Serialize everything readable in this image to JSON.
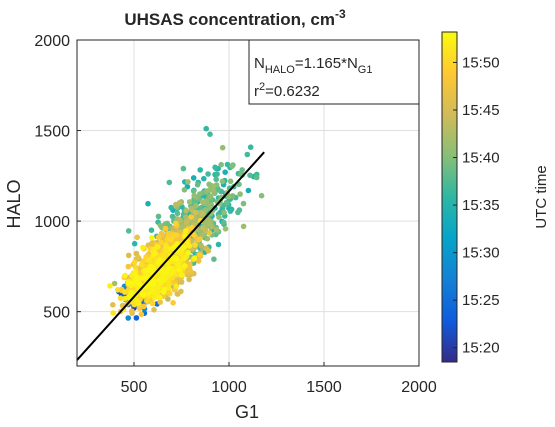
{
  "chart_data": {
    "type": "scatter",
    "title": "UHSAS concentration, cm",
    "title_sup": "-3",
    "xlabel": "G1",
    "ylabel": "HALO",
    "xlim": [
      200,
      2000
    ],
    "ylim": [
      200,
      2000
    ],
    "xticks": [
      500,
      1000,
      1500,
      2000
    ],
    "yticks": [
      500,
      1000,
      1500,
      2000
    ],
    "grid": true,
    "annotation": {
      "line1": {
        "n": "N",
        "sub1": "HALO",
        "mid": "=1.165*N",
        "sub2": "G1"
      },
      "line2": {
        "r": "r",
        "sup": "2",
        "val": "=0.6232"
      }
    },
    "fit": {
      "slope": 1.165,
      "intercept": 0,
      "x_range": [
        200,
        1185
      ]
    },
    "colorbar": {
      "label": "UTC time",
      "ticks": [
        "15:20",
        "15:25",
        "15:30",
        "15:35",
        "15:40",
        "15:45",
        "15:50"
      ],
      "range_minutes": [
        18.5,
        53.2
      ],
      "colors": [
        "#352a87",
        "#0f5cdd",
        "#1481d6",
        "#06a4ca",
        "#2eb7a4",
        "#87bf77",
        "#d1bb59",
        "#fec832",
        "#f9fb0e"
      ]
    },
    "series": [
      {
        "clusters": [
          {
            "cx": 855,
            "cy": 1060,
            "sx": 110,
            "sy": 120,
            "rho": 0.55,
            "n": 260,
            "tmin": 33,
            "tmax": 42
          },
          {
            "cx": 760,
            "cy": 930,
            "sx": 90,
            "sy": 100,
            "rho": 0.5,
            "n": 200,
            "tmin": 35,
            "tmax": 44
          },
          {
            "cx": 690,
            "cy": 820,
            "sx": 75,
            "sy": 90,
            "rho": 0.55,
            "n": 240,
            "tmin": 42,
            "tmax": 50
          },
          {
            "cx": 640,
            "cy": 750,
            "sx": 80,
            "sy": 85,
            "rho": 0.6,
            "n": 360,
            "tmin": 44,
            "tmax": 53
          },
          {
            "cx": 600,
            "cy": 670,
            "sx": 70,
            "sy": 65,
            "rho": 0.6,
            "n": 420,
            "tmin": 46,
            "tmax": 53
          },
          {
            "cx": 560,
            "cy": 620,
            "sx": 60,
            "sy": 55,
            "rho": 0.5,
            "n": 140,
            "tmin": 19,
            "tmax": 30
          },
          {
            "cx": 700,
            "cy": 700,
            "sx": 50,
            "sy": 60,
            "rho": 0.4,
            "n": 90,
            "tmin": 45,
            "tmax": 49
          }
        ],
        "outliers": [
          {
            "x": 880,
            "y": 1510,
            "t": 36
          },
          {
            "x": 900,
            "y": 1480,
            "t": 37
          },
          {
            "x": 890,
            "y": 1260,
            "t": 37
          },
          {
            "x": 980,
            "y": 1270,
            "t": 34
          },
          {
            "x": 760,
            "y": 1290,
            "t": 38
          },
          {
            "x": 1035,
            "y": 1130,
            "t": 37
          },
          {
            "x": 950,
            "y": 1100,
            "t": 36
          },
          {
            "x": 880,
            "y": 850,
            "t": 45
          },
          {
            "x": 840,
            "y": 780,
            "t": 47
          },
          {
            "x": 420,
            "y": 610,
            "t": 24
          },
          {
            "x": 470,
            "y": 560,
            "t": 21
          },
          {
            "x": 500,
            "y": 520,
            "t": 20
          },
          {
            "x": 450,
            "y": 640,
            "t": 28
          }
        ]
      }
    ]
  }
}
